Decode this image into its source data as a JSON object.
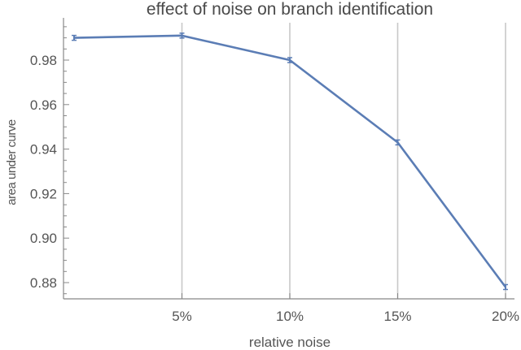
{
  "chart_data": {
    "type": "line",
    "title": "effect of noise on branch identification",
    "xlabel": "relative noise",
    "ylabel": "area under curve",
    "x": [
      0,
      5,
      10,
      15,
      20
    ],
    "x_tick_labels": [
      "5%",
      "10%",
      "15%",
      "20%"
    ],
    "x_ticks": [
      5,
      10,
      15,
      20
    ],
    "y_tick_labels": [
      "0.88",
      "0.90",
      "0.92",
      "0.94",
      "0.96",
      "0.98"
    ],
    "y_ticks": [
      0.88,
      0.9,
      0.92,
      0.94,
      0.96,
      0.98
    ],
    "ylim": [
      0.873,
      0.997
    ],
    "xlim": [
      -0.5,
      20.5
    ],
    "grid": {
      "vertical": true,
      "horizontal": false
    },
    "legend": null,
    "series": [
      {
        "name": "area under curve",
        "color": "#5b7db5",
        "values": [
          0.99,
          0.991,
          0.98,
          0.943,
          0.878
        ],
        "error_bars": true
      }
    ]
  },
  "colors": {
    "line": "#5b7db5",
    "grid": "#c8c8c8",
    "axis": "#888888",
    "text": "#555555"
  }
}
